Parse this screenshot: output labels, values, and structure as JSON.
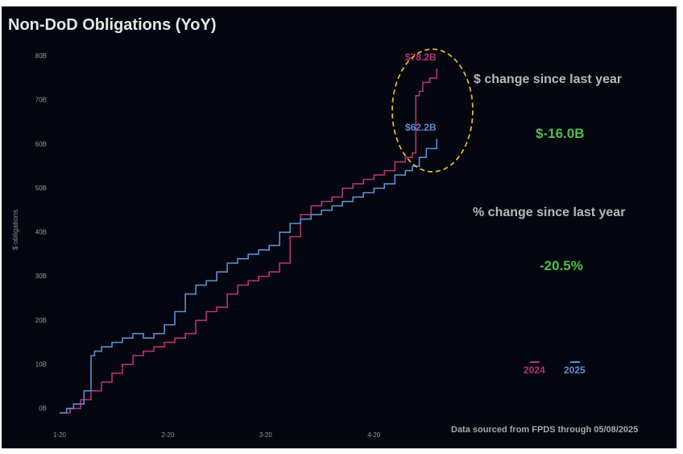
{
  "title": "Non-DoD Obligations (YoY)",
  "stats": {
    "dollar_change_label": "$ change since last year",
    "dollar_change_value": "$-16.0B",
    "pct_change_label": "% change since last year",
    "pct_change_value": "-20.5%"
  },
  "source_note": "Data sourced from FPDS through 05/08/2025",
  "colors": {
    "background": "#03060f",
    "series_2024": "#b8336f",
    "series_2025": "#5b8fd0",
    "highlight": "#e8b520",
    "stat_value": "#4fbf4a"
  },
  "chart_data": {
    "type": "line",
    "ylabel": "$ obligations",
    "ylim": [
      0,
      80
    ],
    "y_ticks": [
      0,
      10,
      20,
      30,
      40,
      50,
      60,
      70,
      80
    ],
    "y_tick_labels": [
      "0B",
      "10B",
      "20B",
      "30B",
      "40B",
      "50B",
      "60B",
      "70B",
      "80B"
    ],
    "x_ticks": [
      0,
      31,
      59,
      90
    ],
    "x_tick_labels": [
      "1-20",
      "2-20",
      "3-20",
      "4-20"
    ],
    "xlim": [
      0,
      119
    ],
    "grid": false,
    "legend_placement": "bottom-right",
    "series": [
      {
        "name": "2024",
        "color": "#b8336f",
        "end_label": "$78.2B",
        "x": [
          0,
          3,
          6,
          9,
          12,
          15,
          18,
          21,
          24,
          27,
          30,
          33,
          36,
          39,
          42,
          45,
          48,
          51,
          54,
          57,
          60,
          63,
          66,
          69,
          72,
          75,
          78,
          81,
          84,
          87,
          90,
          93,
          96,
          99,
          101,
          102,
          103,
          104,
          106,
          108
        ],
        "y": [
          0,
          1,
          3,
          5,
          7,
          9,
          11,
          13,
          14,
          15,
          16,
          17,
          18,
          21,
          23,
          24,
          27,
          29,
          30,
          31,
          32,
          34,
          40,
          45,
          47,
          48,
          49,
          51,
          52,
          53,
          54,
          55,
          57,
          58,
          59,
          72,
          73,
          75,
          76,
          78.2
        ]
      },
      {
        "name": "2025",
        "color": "#5b8fd0",
        "end_label": "$62.2B",
        "x": [
          0,
          2,
          4,
          7,
          9,
          10,
          12,
          15,
          18,
          21,
          24,
          27,
          30,
          33,
          36,
          39,
          42,
          45,
          48,
          51,
          54,
          57,
          60,
          63,
          66,
          69,
          72,
          75,
          78,
          81,
          84,
          87,
          90,
          93,
          96,
          99,
          101,
          103,
          105,
          108
        ],
        "y": [
          0,
          1,
          2,
          5,
          13,
          14,
          15,
          16,
          17,
          18,
          17,
          18,
          20,
          23,
          27,
          29,
          30,
          32,
          34,
          35,
          36,
          37,
          38,
          41,
          43,
          44,
          45,
          46,
          47,
          48,
          49,
          50,
          51,
          52,
          54,
          55,
          56,
          58,
          60,
          62.2
        ]
      }
    ]
  }
}
